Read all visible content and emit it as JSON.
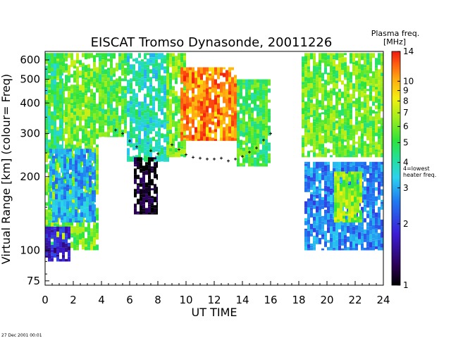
{
  "chart_data": {
    "type": "heatmap",
    "title": "EISCAT Tromso Dynasonde,  20011226",
    "xlabel": "UT TIME",
    "ylabel": "Virtual Range [km]   (colour= Freq)",
    "x_ticks": [
      "0",
      "2",
      "4",
      "6",
      "8",
      "10",
      "12",
      "14",
      "16",
      "18",
      "20",
      "22",
      "24"
    ],
    "x_tick_values": [
      0,
      2,
      4,
      6,
      8,
      10,
      12,
      14,
      16,
      18,
      20,
      22,
      24
    ],
    "xlim": [
      0,
      24
    ],
    "y_ticks": [
      "75",
      "100",
      "200",
      "300",
      "400",
      "500",
      "600"
    ],
    "y_tick_values": [
      75,
      100,
      200,
      300,
      400,
      500,
      600
    ],
    "ylim": [
      72,
      650
    ],
    "y_scale": "log",
    "colorbar": {
      "title_line1": "Plasma freq.",
      "title_line2": "[MHz]",
      "tick_labels": [
        "1",
        "2",
        "3",
        "4",
        "5",
        "6",
        "7",
        "8",
        "9",
        "10",
        "14"
      ],
      "tick_values": [
        1,
        2,
        3,
        4,
        5,
        6,
        7,
        8,
        9,
        10,
        14
      ],
      "range": [
        1,
        14
      ],
      "scale": "log",
      "annotation_line1": "4=lowest",
      "annotation_line2": "heater freq."
    },
    "footer_timestamp": "27 Dec 2001 00:01",
    "series": [
      {
        "x_range": [
          0.0,
          3.8
        ],
        "y_range": [
          100,
          640
        ],
        "freq": 6.0
      },
      {
        "x_range": [
          0.0,
          1.3
        ],
        "y_range": [
          250,
          640
        ],
        "freq": 4.7
      },
      {
        "x_range": [
          0.3,
          3.6
        ],
        "y_range": [
          130,
          260
        ],
        "freq": 3.0
      },
      {
        "x_range": [
          0.0,
          1.8
        ],
        "y_range": [
          90,
          125
        ],
        "freq": 1.8
      },
      {
        "x_range": [
          3.8,
          5.8
        ],
        "y_range": [
          290,
          640
        ],
        "freq": 5.4
      },
      {
        "x_range": [
          5.8,
          8.8
        ],
        "y_range": [
          230,
          640
        ],
        "freq": 4.0
      },
      {
        "x_range": [
          6.3,
          8.0
        ],
        "y_range": [
          140,
          240
        ],
        "freq": 1.1
      },
      {
        "x_range": [
          8.6,
          10.0
        ],
        "y_range": [
          240,
          640
        ],
        "freq": 6.2
      },
      {
        "x_range": [
          9.6,
          13.6
        ],
        "y_range": [
          280,
          560
        ],
        "freq": 11.0
      },
      {
        "x_range": [
          13.6,
          16.0
        ],
        "y_range": [
          220,
          500
        ],
        "freq": 5.2
      },
      {
        "x_range": [
          18.2,
          24.0
        ],
        "y_range": [
          240,
          640
        ],
        "freq": 5.9
      },
      {
        "x_range": [
          18.4,
          24.0
        ],
        "y_range": [
          100,
          230
        ],
        "freq": 2.7
      },
      {
        "x_range": [
          20.5,
          22.5
        ],
        "y_range": [
          130,
          210
        ],
        "freq": 6.5
      }
    ],
    "trace_points": [
      [
        9.0,
        270
      ],
      [
        9.5,
        258
      ],
      [
        10.0,
        246
      ],
      [
        10.5,
        240
      ],
      [
        11.0,
        238
      ],
      [
        11.5,
        236
      ],
      [
        12.0,
        236
      ],
      [
        12.5,
        238
      ],
      [
        13.0,
        232
      ],
      [
        13.5,
        236
      ],
      [
        14.0,
        242
      ],
      [
        14.5,
        252
      ],
      [
        15.0,
        262
      ],
      [
        15.5,
        282
      ],
      [
        16.0,
        300
      ],
      [
        7.5,
        255
      ],
      [
        8.0,
        248
      ],
      [
        6.5,
        265
      ],
      [
        6.0,
        280
      ],
      [
        5.5,
        300
      ],
      [
        5.0,
        310
      ]
    ]
  }
}
